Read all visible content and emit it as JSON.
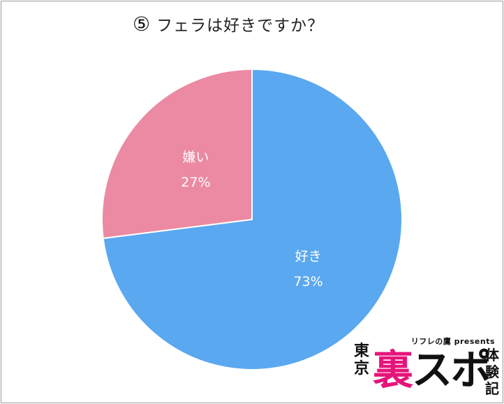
{
  "title": {
    "number": "⑤",
    "text": "フェラは好きですか？"
  },
  "chart_data": {
    "type": "pie",
    "title": "フェラは好きですか？",
    "start_angle_deg": 0,
    "direction": "clockwise",
    "slices": [
      {
        "name": "好き",
        "value": 73,
        "label": "73%",
        "color": "#5aa8ef"
      },
      {
        "name": "嫌い",
        "value": 27,
        "label": "27%",
        "color": "#eb8aa2"
      }
    ]
  },
  "logo": {
    "presented_by": "リフレの鷹 presents",
    "left_chars": [
      "東",
      "京"
    ],
    "main_char_1": "裏",
    "main_char_2": "スポ",
    "right_chars": [
      "体",
      "験",
      "記"
    ],
    "colors": {
      "accent": "#e5147a",
      "dark": "#111111"
    }
  }
}
